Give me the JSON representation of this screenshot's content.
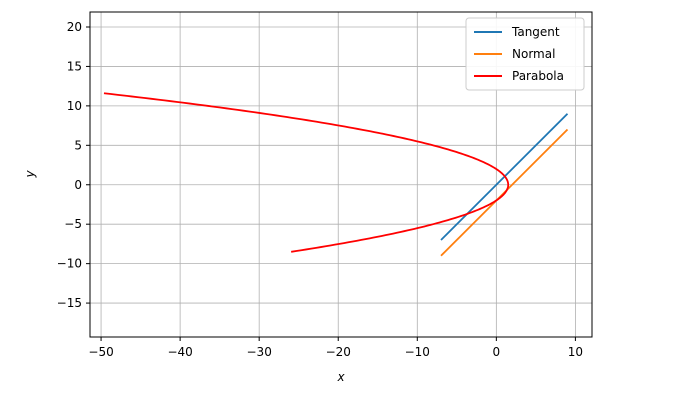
{
  "chart_data": {
    "type": "line",
    "title": "",
    "xlabel": "x",
    "ylabel": "y",
    "xlim": [
      -51.4,
      12.1
    ],
    "ylim": [
      -19.3,
      21.9
    ],
    "xticks": [
      -50,
      -40,
      -30,
      -20,
      -10,
      0,
      10
    ],
    "yticks": [
      -15,
      -10,
      -5,
      0,
      5,
      10,
      15,
      20
    ],
    "xtick_labels": [
      "−50",
      "−40",
      "−30",
      "−20",
      "−10",
      "0",
      "10"
    ],
    "ytick_labels": [
      "−15",
      "−10",
      "−5",
      "0",
      "5",
      "10",
      "15",
      "20"
    ],
    "grid": true,
    "legend_position": "top-right",
    "series": [
      {
        "name": "Tangent",
        "color": "#1f77b4",
        "x": [
          -7,
          9
        ],
        "y": [
          -7,
          9
        ]
      },
      {
        "name": "Normal",
        "color": "#ff7f0e",
        "x": [
          -7,
          9
        ],
        "y": [
          -9,
          7
        ]
      },
      {
        "name": "Parabola",
        "color": "#ff0000",
        "equation": "x = 1.5 - 0.38*y^2",
        "y_range": [
          -8.5,
          11.6
        ]
      }
    ]
  }
}
